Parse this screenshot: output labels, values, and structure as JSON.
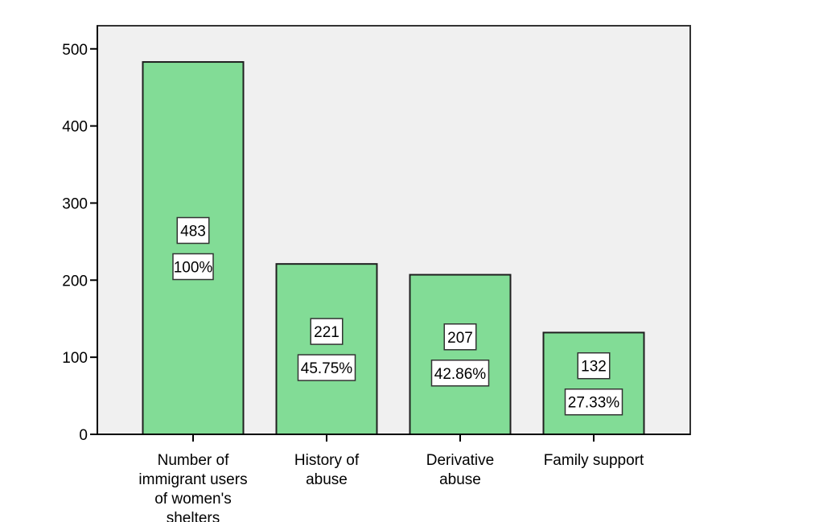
{
  "chart_data": {
    "type": "bar",
    "categories": [
      [
        "Number of",
        "immigrant users",
        "of women's",
        "shelters"
      ],
      [
        "History of",
        "abuse"
      ],
      [
        "Derivative",
        "abuse"
      ],
      [
        "Family support"
      ]
    ],
    "values": [
      483,
      221,
      207,
      132
    ],
    "percent_labels": [
      "100%",
      "45.75%",
      "42.86%",
      "27.33%"
    ],
    "ylim": [
      0,
      530
    ],
    "yticks": [
      0,
      100,
      200,
      300,
      400,
      500
    ],
    "title": "",
    "xlabel": "",
    "ylabel": "",
    "grid": false,
    "colors": {
      "bar": "#82dc96",
      "bar_edge": "#1f1f1f",
      "plot_bg": "#f0f0f0",
      "frame": "#333333"
    }
  }
}
